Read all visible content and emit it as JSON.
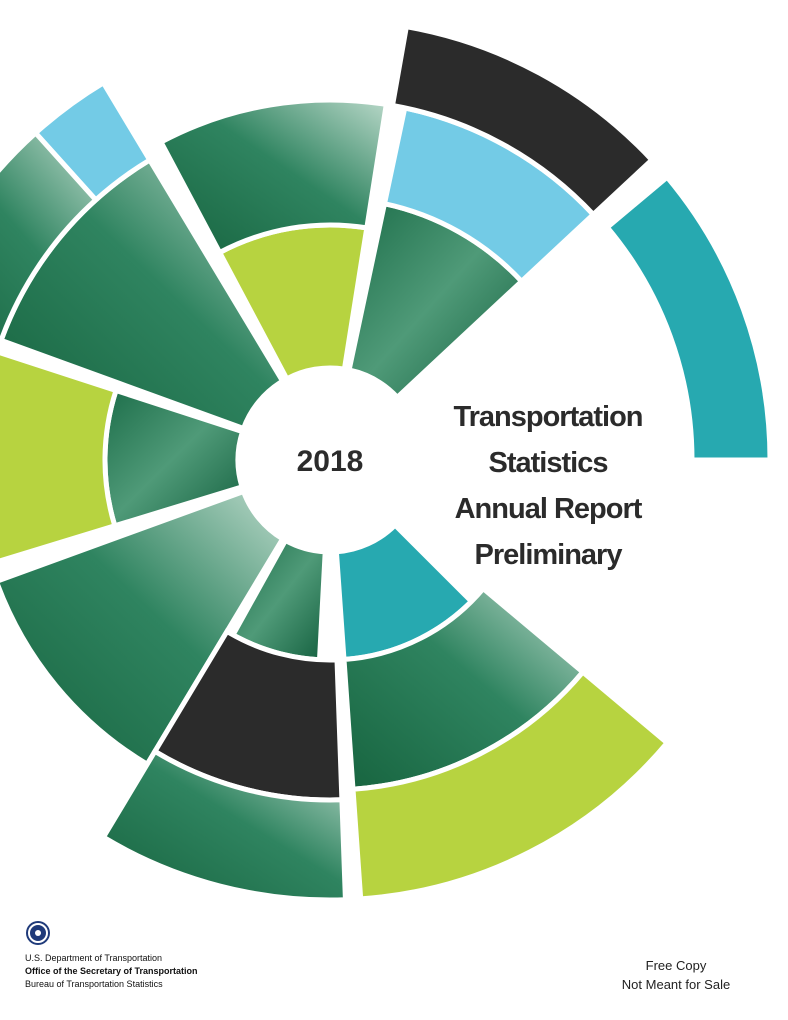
{
  "report": {
    "year": "2018",
    "title_lines": [
      "Transportation",
      "Statistics",
      "Annual Report",
      "Preliminary"
    ]
  },
  "agency": {
    "department": "U.S. Department of Transportation",
    "office": "Office of the Secretary of Transportation",
    "bureau": "Bureau of Transportation Statistics"
  },
  "notice": [
    "Free Copy",
    "Not Meant for Sale"
  ]
}
